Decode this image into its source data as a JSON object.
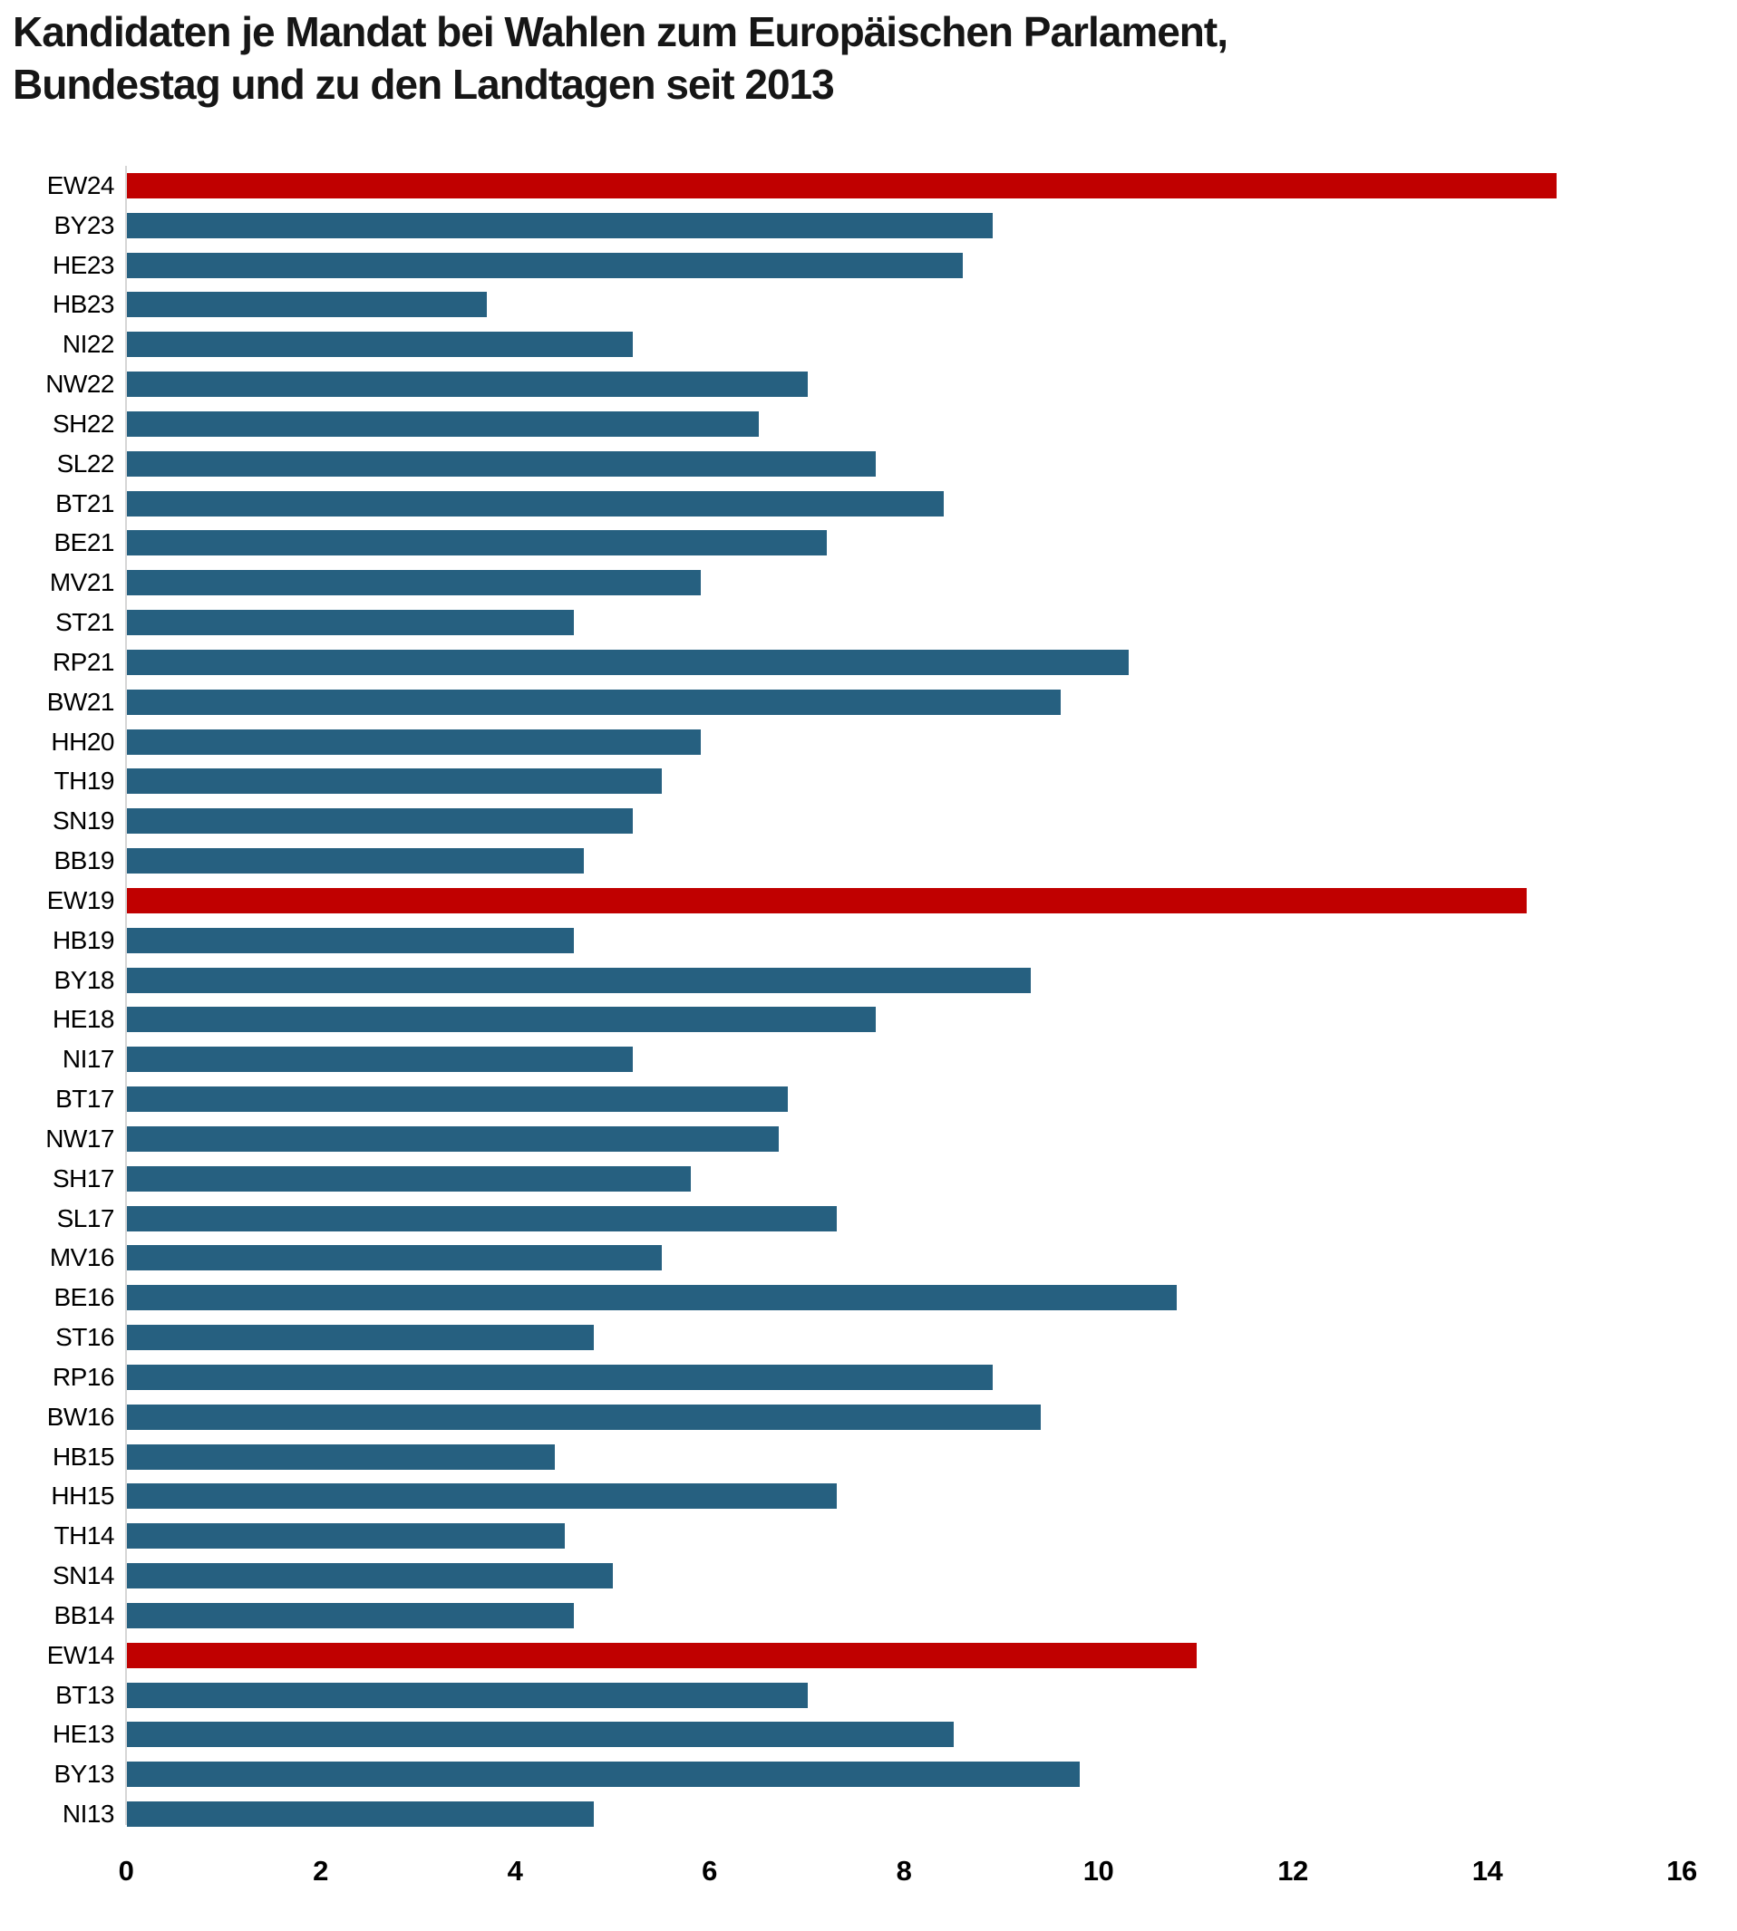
{
  "chart_data": {
    "type": "bar",
    "orientation": "horizontal",
    "title": "Kandidaten je Mandat bei Wahlen zum Europäischen Parlament, Bundestag und zu den Landtagen seit 2013",
    "title_lines": [
      "Kandidaten je Mandat bei Wahlen zum Europäischen Parlament,",
      "Bundestag und zu den Landtagen seit 2013"
    ],
    "categories": [
      "EW24",
      "BY23",
      "HE23",
      "HB23",
      "NI22",
      "NW22",
      "SH22",
      "SL22",
      "BT21",
      "BE21",
      "MV21",
      "ST21",
      "RP21",
      "BW21",
      "HH20",
      "TH19",
      "SN19",
      "BB19",
      "EW19",
      "HB19",
      "BY18",
      "HE18",
      "NI17",
      "BT17",
      "NW17",
      "SH17",
      "SL17",
      "MV16",
      "BE16",
      "ST16",
      "RP16",
      "BW16",
      "HB15",
      "HH15",
      "TH14",
      "SN14",
      "BB14",
      "EW14",
      "BT13",
      "HE13",
      "BY13",
      "NI13"
    ],
    "values": [
      14.7,
      8.9,
      8.6,
      3.7,
      5.2,
      7.0,
      6.5,
      7.7,
      8.4,
      7.2,
      5.9,
      4.6,
      10.3,
      9.6,
      5.9,
      5.5,
      5.2,
      4.7,
      14.4,
      4.6,
      9.3,
      7.7,
      5.2,
      6.8,
      6.7,
      5.8,
      7.3,
      5.5,
      10.8,
      4.8,
      8.9,
      9.4,
      4.4,
      7.3,
      4.5,
      5.0,
      4.6,
      11.0,
      7.0,
      8.5,
      9.8,
      4.8
    ],
    "highlighted_categories": [
      "EW24",
      "EW19",
      "EW14"
    ],
    "colors": {
      "bar_default": "#266080",
      "bar_highlight": "#C00000",
      "axis_line": "#d6d6d6",
      "text": "#000000"
    },
    "xlim": [
      0,
      16
    ],
    "x_ticks": [
      "0",
      "2",
      "4",
      "6",
      "8",
      "10",
      "12",
      "14",
      "16"
    ],
    "grid": "off",
    "legend": "none"
  }
}
